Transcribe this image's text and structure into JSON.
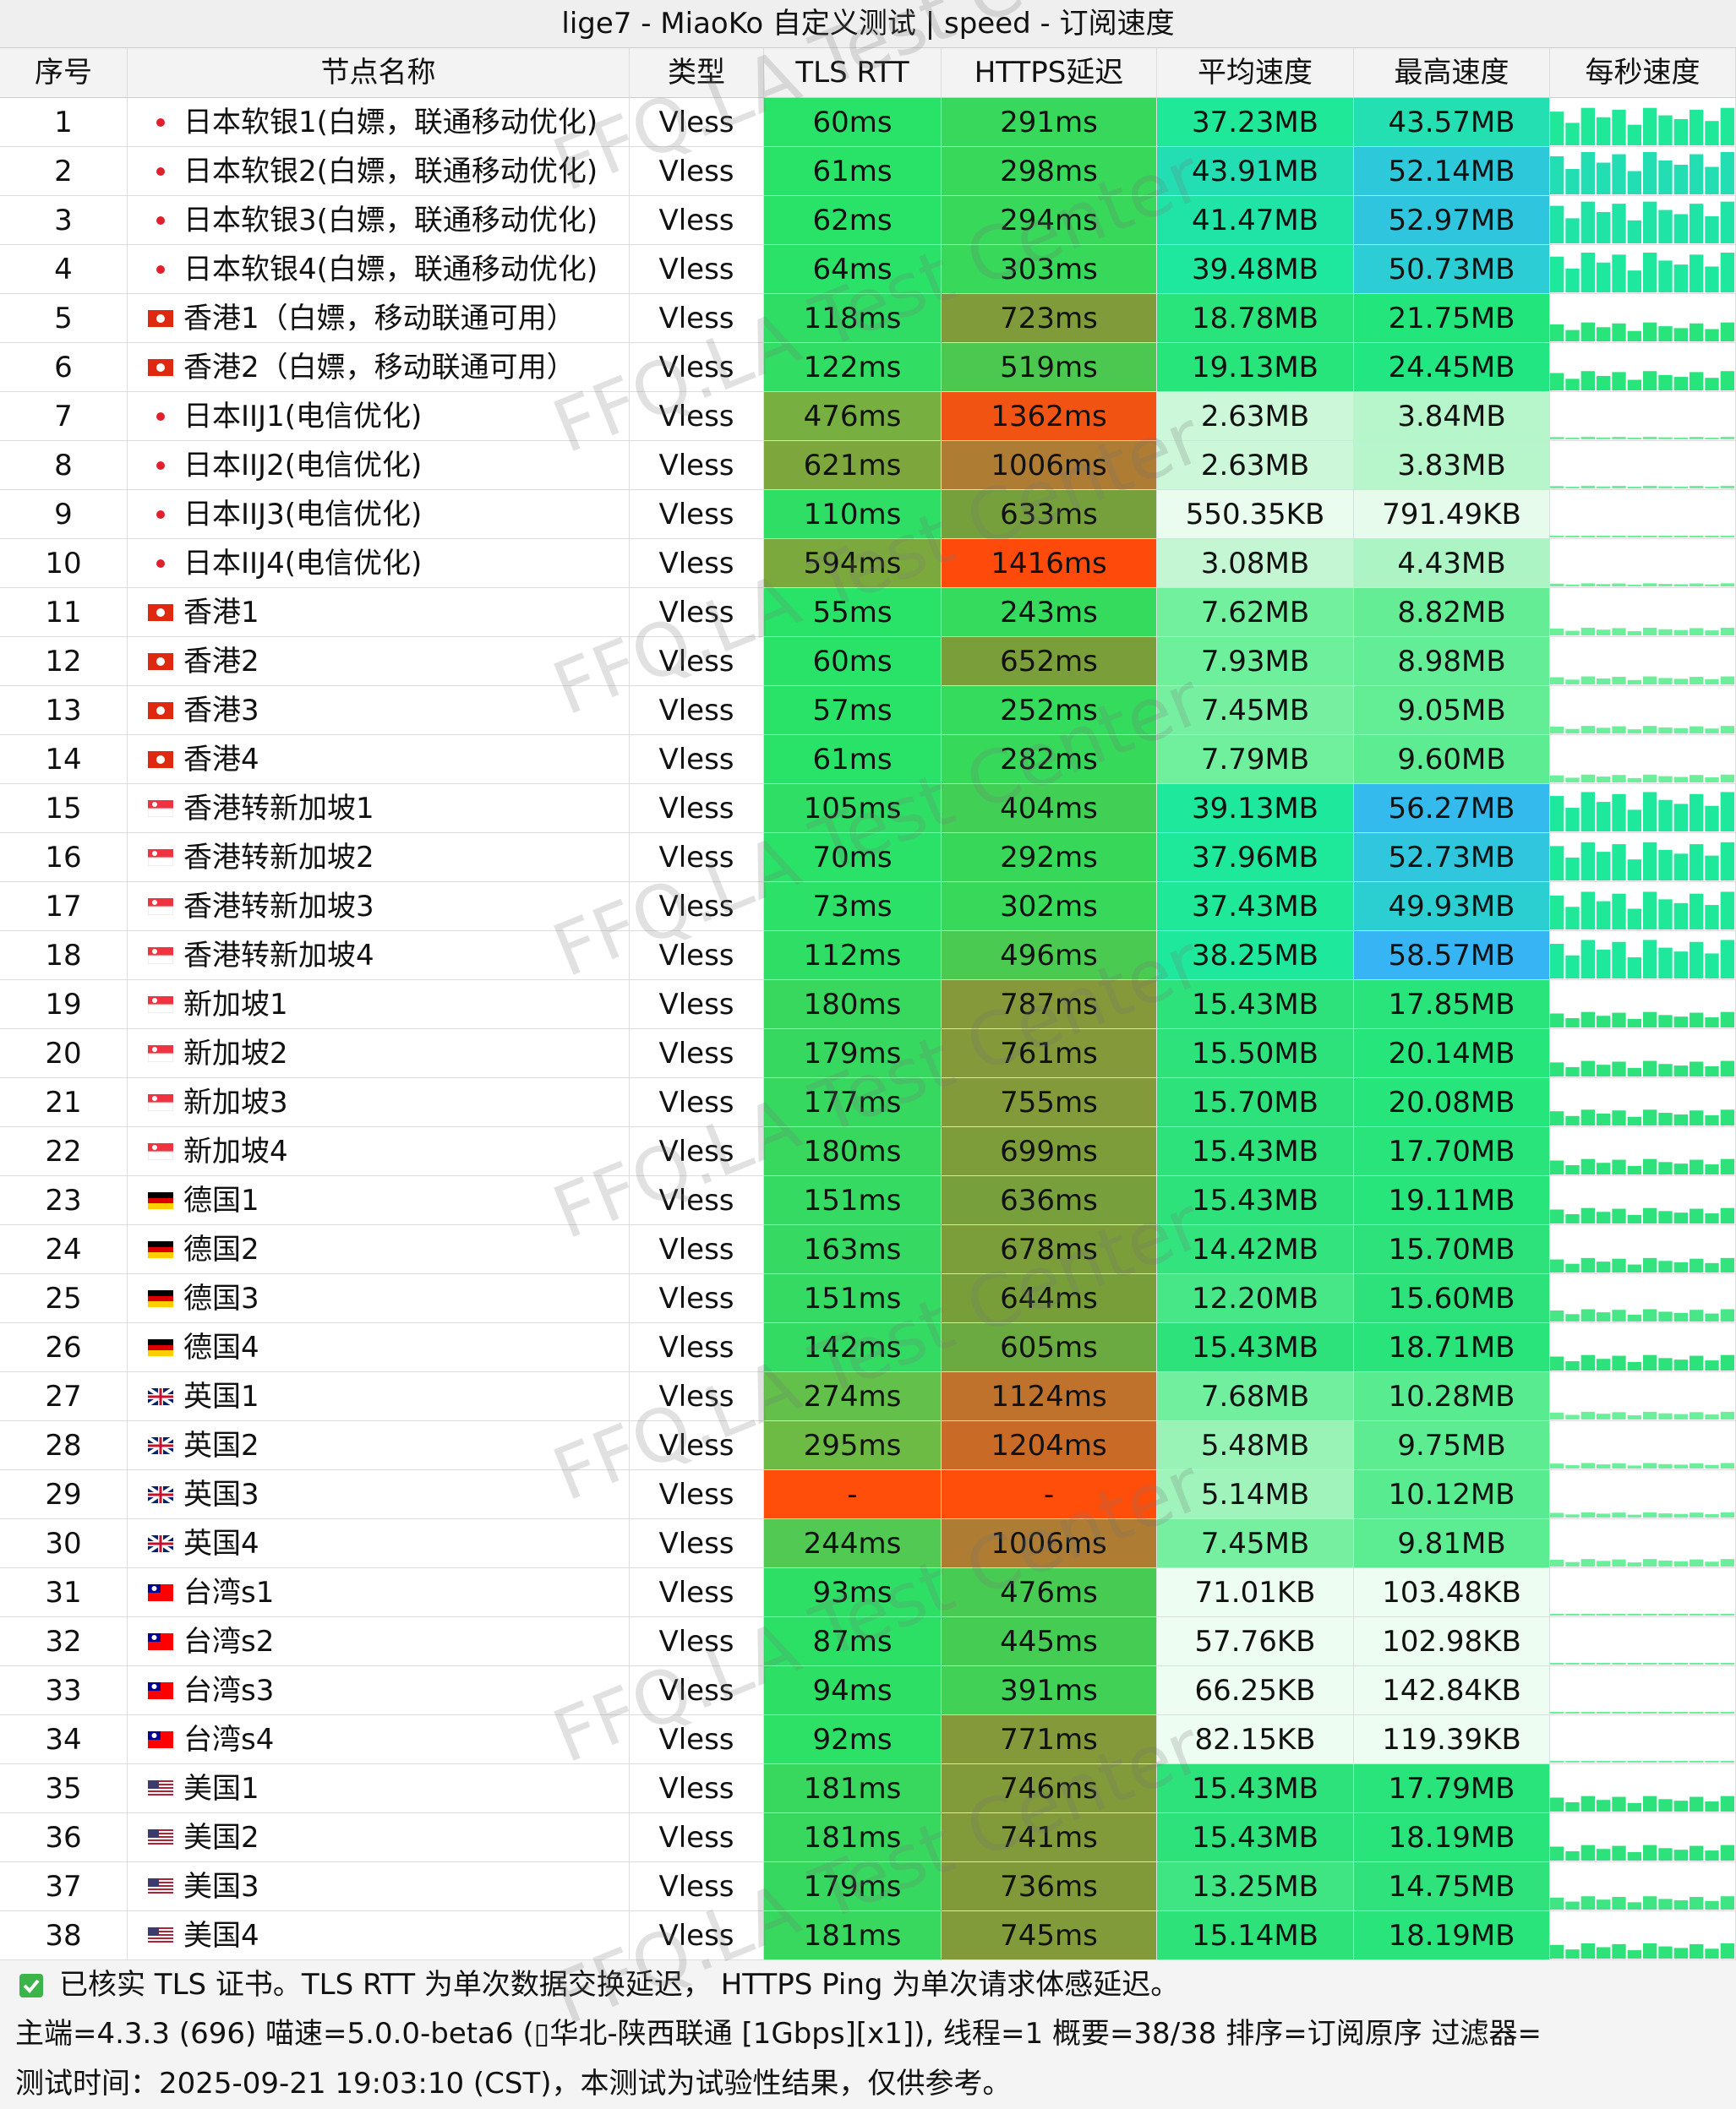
{
  "title": "lige7 - MiaoKo 自定义测试 | speed - 订阅速度",
  "watermark": "FFQ.LA Test Center",
  "columns": [
    "序号",
    "节点名称",
    "类型",
    "TLS RTT",
    "HTTPS延迟",
    "平均速度",
    "最高速度",
    "每秒速度"
  ],
  "rows": [
    [
      "1",
      "日本软银1(白嫖，联通移动优化)",
      "Vless",
      "60ms",
      "291ms",
      "37.23MB",
      "43.57MB"
    ],
    [
      "2",
      "日本软银2(白嫖，联通移动优化)",
      "Vless",
      "61ms",
      "298ms",
      "43.91MB",
      "52.14MB"
    ],
    [
      "3",
      "日本软银3(白嫖，联通移动优化)",
      "Vless",
      "62ms",
      "294ms",
      "41.47MB",
      "52.97MB"
    ],
    [
      "4",
      "日本软银4(白嫖，联通移动优化)",
      "Vless",
      "64ms",
      "303ms",
      "39.48MB",
      "50.73MB"
    ],
    [
      "5",
      "香港1（白嫖，移动联通可用）",
      "Vless",
      "118ms",
      "723ms",
      "18.78MB",
      "21.75MB"
    ],
    [
      "6",
      "香港2（白嫖，移动联通可用）",
      "Vless",
      "122ms",
      "519ms",
      "19.13MB",
      "24.45MB"
    ],
    [
      "7",
      "日本IIJ1(电信优化)",
      "Vless",
      "476ms",
      "1362ms",
      "2.63MB",
      "3.84MB"
    ],
    [
      "8",
      "日本IIJ2(电信优化)",
      "Vless",
      "621ms",
      "1006ms",
      "2.63MB",
      "3.83MB"
    ],
    [
      "9",
      "日本IIJ3(电信优化)",
      "Vless",
      "110ms",
      "633ms",
      "550.35KB",
      "791.49KB"
    ],
    [
      "10",
      "日本IIJ4(电信优化)",
      "Vless",
      "594ms",
      "1416ms",
      "3.08MB",
      "4.43MB"
    ],
    [
      "11",
      "香港1",
      "Vless",
      "55ms",
      "243ms",
      "7.62MB",
      "8.82MB"
    ],
    [
      "12",
      "香港2",
      "Vless",
      "60ms",
      "652ms",
      "7.93MB",
      "8.98MB"
    ],
    [
      "13",
      "香港3",
      "Vless",
      "57ms",
      "252ms",
      "7.45MB",
      "9.05MB"
    ],
    [
      "14",
      "香港4",
      "Vless",
      "61ms",
      "282ms",
      "7.79MB",
      "9.60MB"
    ],
    [
      "15",
      "香港转新加坡1",
      "Vless",
      "105ms",
      "404ms",
      "39.13MB",
      "56.27MB"
    ],
    [
      "16",
      "香港转新加坡2",
      "Vless",
      "70ms",
      "292ms",
      "37.96MB",
      "52.73MB"
    ],
    [
      "17",
      "香港转新加坡3",
      "Vless",
      "73ms",
      "302ms",
      "37.43MB",
      "49.93MB"
    ],
    [
      "18",
      "香港转新加坡4",
      "Vless",
      "112ms",
      "496ms",
      "38.25MB",
      "58.57MB"
    ],
    [
      "19",
      "新加坡1",
      "Vless",
      "180ms",
      "787ms",
      "15.43MB",
      "17.85MB"
    ],
    [
      "20",
      "新加坡2",
      "Vless",
      "179ms",
      "761ms",
      "15.50MB",
      "20.14MB"
    ],
    [
      "21",
      "新加坡3",
      "Vless",
      "177ms",
      "755ms",
      "15.70MB",
      "20.08MB"
    ],
    [
      "22",
      "新加坡4",
      "Vless",
      "180ms",
      "699ms",
      "15.43MB",
      "17.70MB"
    ],
    [
      "23",
      "德国1",
      "Vless",
      "151ms",
      "636ms",
      "15.43MB",
      "19.11MB"
    ],
    [
      "24",
      "德国2",
      "Vless",
      "163ms",
      "678ms",
      "14.42MB",
      "15.70MB"
    ],
    [
      "25",
      "德国3",
      "Vless",
      "151ms",
      "644ms",
      "12.20MB",
      "15.60MB"
    ],
    [
      "26",
      "德国4",
      "Vless",
      "142ms",
      "605ms",
      "15.43MB",
      "18.71MB"
    ],
    [
      "27",
      "英国1",
      "Vless",
      "274ms",
      "1124ms",
      "7.68MB",
      "10.28MB"
    ],
    [
      "28",
      "英国2",
      "Vless",
      "295ms",
      "1204ms",
      "5.48MB",
      "9.75MB"
    ],
    [
      "29",
      "英国3",
      "Vless",
      "-",
      "-",
      "5.14MB",
      "10.12MB"
    ],
    [
      "30",
      "英国4",
      "Vless",
      "244ms",
      "1006ms",
      "7.45MB",
      "9.81MB"
    ],
    [
      "31",
      "台湾s1",
      "Vless",
      "93ms",
      "476ms",
      "71.01KB",
      "103.48KB"
    ],
    [
      "32",
      "台湾s2",
      "Vless",
      "87ms",
      "445ms",
      "57.76KB",
      "102.98KB"
    ],
    [
      "33",
      "台湾s3",
      "Vless",
      "94ms",
      "391ms",
      "66.25KB",
      "142.84KB"
    ],
    [
      "34",
      "台湾s4",
      "Vless",
      "92ms",
      "771ms",
      "82.15KB",
      "119.39KB"
    ],
    [
      "35",
      "美国1",
      "Vless",
      "181ms",
      "746ms",
      "15.43MB",
      "17.79MB"
    ],
    [
      "36",
      "美国2",
      "Vless",
      "181ms",
      "741ms",
      "15.43MB",
      "18.19MB"
    ],
    [
      "37",
      "美国3",
      "Vless",
      "179ms",
      "736ms",
      "13.25MB",
      "14.75MB"
    ],
    [
      "38",
      "美国4",
      "Vless",
      "181ms",
      "745ms",
      "15.14MB",
      "18.19MB"
    ]
  ],
  "footer": [
    "已核实 TLS 证书。TLS RTT 为单次数据交换延迟， HTTPS Ping 为单次请求体感延迟。",
    "主端=4.3.3 (696) 喵速=5.0.0-beta6 (▯华北-陕西联通 [1Gbps][x1]), 线程=1 概要=38/38 排序=订阅原序 过滤器=",
    "测试时间：2025-09-21 19:03:10 (CST)，本测试为试验性结果，仅供参考。"
  ]
}
